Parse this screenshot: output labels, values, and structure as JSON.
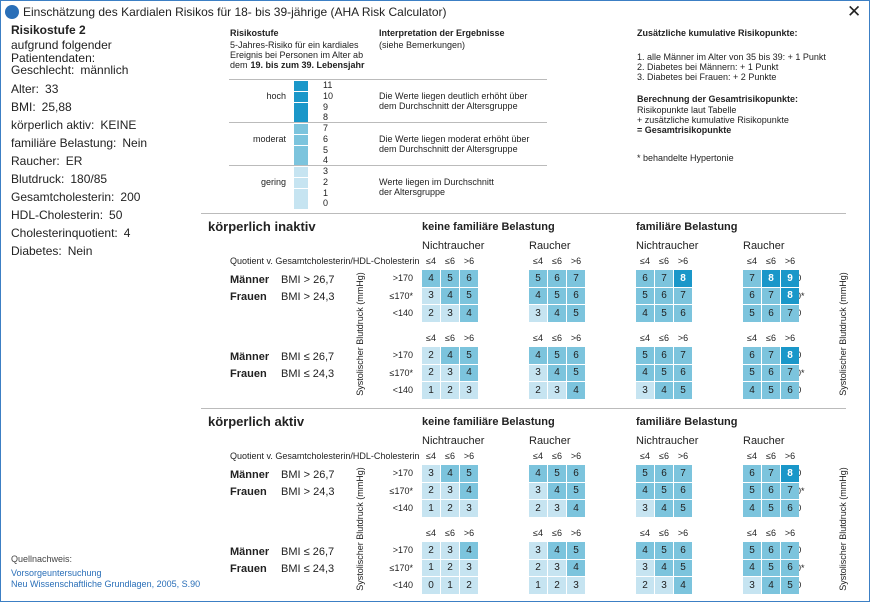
{
  "window": {
    "title": "Einschätzung des Kardialen Risikos für 18- bis 39-jährige (AHA Risk Calculator)"
  },
  "patient": {
    "heading": "Risikostufe 2",
    "subheading": "aufgrund folgender Patientendaten:",
    "fields": [
      {
        "label": "Geschlecht:",
        "value": "männlich"
      },
      {
        "label": "Alter:",
        "value": "33"
      },
      {
        "label": "BMI:",
        "value": "25,88"
      },
      {
        "label": "körperlich aktiv:",
        "value": "KEINE"
      },
      {
        "label": "familiäre Belastung:",
        "value": "Nein"
      },
      {
        "label": "Raucher:",
        "value": "ER"
      },
      {
        "label": "Blutdruck:",
        "value": "180/85"
      },
      {
        "label": "Gesamtcholesterin:",
        "value": "200"
      },
      {
        "label": "HDL-Cholesterin:",
        "value": "50"
      },
      {
        "label": "Cholesterinquotient:",
        "value": "4"
      },
      {
        "label": "Diabetes:",
        "value": "Nein"
      }
    ]
  },
  "source": {
    "heading": "Quellnachweis:",
    "lines": [
      "Vorsorgeuntersuchung",
      "Neu Wissenschaftliche Grundlagen, 2005, S.90"
    ]
  },
  "legend": {
    "risk_heading": "Risikostufe",
    "risk_lines": [
      "5-Jahres-Risiko für ein kardiales",
      "Ereignis bei Personen im Alter ab",
      "dem"
    ],
    "risk_emphasis": "19. bis zum 39. Lebensjahr",
    "interp_heading": "Interpretation der Ergebnisse",
    "interp_sub": "(siehe Bemerkungen)",
    "levels": [
      {
        "label": "hoch",
        "points": [
          11,
          10,
          9,
          8
        ],
        "color": "#1a97c9",
        "interpretation": [
          "Die Werte liegen deutlich erhöht über",
          "dem Durchschnitt der Altersgruppe"
        ]
      },
      {
        "label": "moderat",
        "points": [
          7,
          6,
          5,
          4
        ],
        "color": "#7cc4dd",
        "interpretation": [
          "Die Werte liegen moderat erhöht über",
          "dem Durchschnitt der Altersgruppe"
        ]
      },
      {
        "label": "gering",
        "points": [
          3,
          2,
          1,
          0
        ],
        "color": "#c6e4f1",
        "interpretation": [
          "Werte liegen im Durchschnitt",
          "der Altersgruppe"
        ]
      }
    ]
  },
  "extra": {
    "heading": "Zusätzliche kumulative Risikopunkte:",
    "items": [
      "1. alle Männer im Alter von 35 bis 39: + 1 Punkt",
      "2. Diabetes bei Männern: + 1 Punkt",
      "3. Diabetes bei Frauen: + 2 Punkte"
    ],
    "calc_heading": "Berechnung der Gesamtrisikopunkte:",
    "calc_lines": [
      "Risikopunkte laut Tabelle",
      "+ zusätzliche kumulative Risikopunkte"
    ],
    "calc_result": "= Gesamtrisikopunkte",
    "note": "* behandelte Hypertonie"
  },
  "grid_labels": {
    "quotient": "Quotient v. Gesamtcholesterin/HDL-Cholesterin",
    "bp_axis": "Systolischer Blutdruck (mmHg)",
    "quotient_cols": [
      "≤4",
      "≤6",
      ">6"
    ],
    "bp_rows": [
      ">170",
      "≤170*",
      "<140"
    ],
    "groups": [
      "keine familiäre Belastung",
      "familiäre Belastung"
    ],
    "smokers": [
      "Nichtraucher",
      "Raucher"
    ],
    "bmi_rows": [
      {
        "men_label": "Männer",
        "men": "BMI > 26,7",
        "women_label": "Frauen",
        "women": "BMI > 24,3"
      },
      {
        "men_label": "Männer",
        "men": "BMI ≤ 26,7",
        "women_label": "Frauen",
        "women": "BMI ≤ 24,3"
      }
    ]
  },
  "sections": [
    {
      "title": "körperlich inaktiv",
      "tables": [
        [
          [
            [
              4,
              5,
              6
            ],
            [
              3,
              4,
              5
            ],
            [
              2,
              3,
              4
            ]
          ],
          [
            [
              5,
              6,
              7
            ],
            [
              4,
              5,
              6
            ],
            [
              3,
              4,
              5
            ]
          ],
          [
            [
              6,
              7,
              8
            ],
            [
              5,
              6,
              7
            ],
            [
              4,
              5,
              6
            ]
          ],
          [
            [
              7,
              8,
              9
            ],
            [
              6,
              7,
              8
            ],
            [
              5,
              6,
              7
            ]
          ]
        ],
        [
          [
            [
              2,
              4,
              5
            ],
            [
              2,
              3,
              4
            ],
            [
              1,
              2,
              3
            ]
          ],
          [
            [
              4,
              5,
              6
            ],
            [
              3,
              4,
              5
            ],
            [
              2,
              3,
              4
            ]
          ],
          [
            [
              5,
              6,
              7
            ],
            [
              4,
              5,
              6
            ],
            [
              3,
              4,
              5
            ]
          ],
          [
            [
              6,
              7,
              8
            ],
            [
              5,
              6,
              7
            ],
            [
              4,
              5,
              6
            ]
          ]
        ]
      ]
    },
    {
      "title": "körperlich aktiv",
      "tables": [
        [
          [
            [
              3,
              4,
              5
            ],
            [
              2,
              3,
              4
            ],
            [
              1,
              2,
              3
            ]
          ],
          [
            [
              4,
              5,
              6
            ],
            [
              3,
              4,
              5
            ],
            [
              2,
              3,
              4
            ]
          ],
          [
            [
              5,
              6,
              7
            ],
            [
              4,
              5,
              6
            ],
            [
              3,
              4,
              5
            ]
          ],
          [
            [
              6,
              7,
              8
            ],
            [
              5,
              6,
              7
            ],
            [
              4,
              5,
              6
            ]
          ]
        ],
        [
          [
            [
              2,
              3,
              4
            ],
            [
              1,
              2,
              3
            ],
            [
              0,
              1,
              2
            ]
          ],
          [
            [
              3,
              4,
              5
            ],
            [
              2,
              3,
              4
            ],
            [
              1,
              2,
              3
            ]
          ],
          [
            [
              4,
              5,
              6
            ],
            [
              3,
              4,
              5
            ],
            [
              2,
              3,
              4
            ]
          ],
          [
            [
              5,
              6,
              7
            ],
            [
              4,
              5,
              6
            ],
            [
              3,
              4,
              5
            ]
          ]
        ]
      ]
    }
  ]
}
